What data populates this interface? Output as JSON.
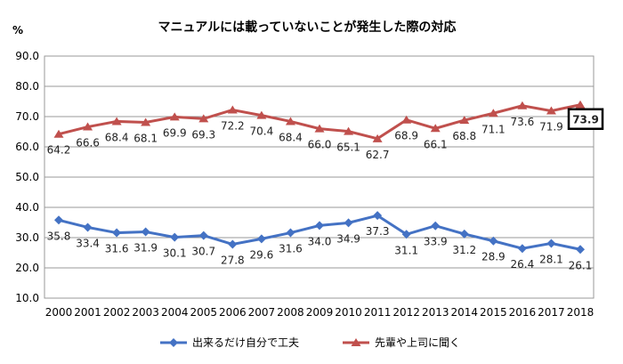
{
  "chart_data": {
    "type": "line",
    "title": "マニュアルには載っていないことが発生した際の対応",
    "ylabel": "%",
    "xlabel": "",
    "ylim": [
      10.0,
      90.0
    ],
    "yticks": [
      "90.0",
      "80.0",
      "70.0",
      "60.0",
      "50.0",
      "40.0",
      "30.0",
      "20.0",
      "10.0"
    ],
    "grid": true,
    "legend_position": "bottom",
    "categories": [
      "2000",
      "2001",
      "2002",
      "2003",
      "2004",
      "2005",
      "2006",
      "2007",
      "2008",
      "2009",
      "2010",
      "2011",
      "2012",
      "2013",
      "2014",
      "2015",
      "2016",
      "2017",
      "2018"
    ],
    "series": [
      {
        "name": "出来るだけ自分で工夫",
        "color": "#4472C4",
        "marker": "diamond",
        "values": [
          35.8,
          33.4,
          31.6,
          31.9,
          30.1,
          30.7,
          27.8,
          29.6,
          31.6,
          34.0,
          34.9,
          37.3,
          31.1,
          33.9,
          31.2,
          28.9,
          26.4,
          28.1,
          26.1
        ]
      },
      {
        "name": "先輩や上司に聞く",
        "color": "#C0504D",
        "marker": "triangle",
        "values": [
          64.2,
          66.6,
          68.4,
          68.1,
          69.9,
          69.3,
          72.2,
          70.4,
          68.4,
          66.0,
          65.1,
          62.7,
          68.9,
          66.1,
          68.8,
          71.1,
          73.6,
          71.9,
          73.9
        ]
      }
    ],
    "highlighted_label": "73.9"
  }
}
